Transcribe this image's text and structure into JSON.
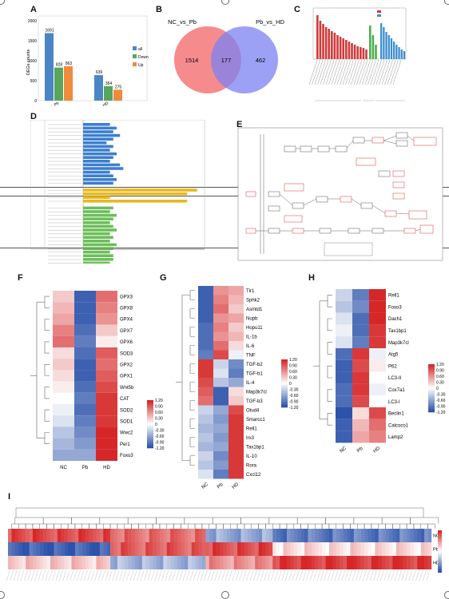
{
  "panels": {
    "A": "A",
    "B": "B",
    "C": "C",
    "D": "D",
    "E": "E",
    "F": "F",
    "G": "G",
    "H": "H",
    "I": "I"
  },
  "chart_a": {
    "type": "bar",
    "ylabel": "DEGs counts",
    "yticks": [
      "0",
      "500",
      "1000",
      "1500",
      "2000"
    ],
    "ylim": [
      0,
      2000
    ],
    "categories": [
      "NC_vs_Pb",
      "Pb_vs_HD"
    ],
    "series": [
      {
        "name": "all",
        "color": "#4a86c5",
        "values": [
          1691,
          639
        ]
      },
      {
        "name": "Down",
        "color": "#58a55c",
        "values": [
          828,
          364
        ]
      },
      {
        "name": "Up",
        "color": "#f08a3c",
        "values": [
          863,
          275
        ]
      }
    ]
  },
  "venn_b": {
    "left_label": "NC_vs_Pb",
    "right_label": "Pb_vs_HD",
    "left_only": "1514",
    "overlap": "177",
    "right_only": "462",
    "left_color": "#f4777a",
    "right_color": "#7b82f2"
  },
  "heat_f": {
    "genes": [
      "GPX3",
      "GPX8",
      "GPX4",
      "GPX7",
      "GPX6",
      "SOD3",
      "GPX2",
      "GPX1",
      "Wnt5b",
      "CAT",
      "SOD2",
      "SOD1",
      "Wwc2",
      "Per1",
      "Foxo3"
    ],
    "cols": [
      "NC",
      "Pb",
      "HD"
    ],
    "values": [
      [
        0.3,
        -1.1,
        0.8
      ],
      [
        0.4,
        -1.1,
        0.7
      ],
      [
        0.5,
        -1.1,
        0.6
      ],
      [
        0.7,
        -1.0,
        0.3
      ],
      [
        0.8,
        -0.9,
        0.1
      ],
      [
        0.2,
        -1.0,
        0.9
      ],
      [
        0.3,
        -1.1,
        0.8
      ],
      [
        0.2,
        -1.1,
        0.9
      ],
      [
        0.1,
        -1.0,
        1.0
      ],
      [
        0.0,
        -0.9,
        1.1
      ],
      [
        -0.1,
        -1.0,
        1.1
      ],
      [
        -0.2,
        -0.9,
        1.1
      ],
      [
        -0.4,
        -0.8,
        1.2
      ],
      [
        -0.5,
        -0.7,
        1.2
      ],
      [
        -0.6,
        -0.6,
        1.2
      ]
    ],
    "legend": [
      "1.20",
      "0.90",
      "0.60",
      "0.30",
      "0",
      "-0.30",
      "-0.60",
      "-0.90",
      "-1.20"
    ]
  },
  "heat_g": {
    "genes": [
      "Tlr1",
      "Sphk2",
      "Asmtd1",
      "Nupb",
      "Hopu11",
      "IL-1b",
      "IL-6",
      "TNF",
      "TGF-b2",
      "TGF-b1",
      "IL-4",
      "Map3k7cl",
      "TGF-b3",
      "Otud4",
      "Smarcc1",
      "Rell1",
      "Irx3",
      "Tax1bp1",
      "IL-10",
      "Rora",
      "Cxcl12"
    ],
    "cols": [
      "NC",
      "Pb",
      "HD"
    ],
    "values": [
      [
        -1.1,
        0.6,
        0.5
      ],
      [
        -1.1,
        0.7,
        0.4
      ],
      [
        -1.1,
        0.8,
        0.3
      ],
      [
        -1.1,
        0.6,
        0.5
      ],
      [
        -1.0,
        0.7,
        0.3
      ],
      [
        -1.0,
        0.6,
        0.4
      ],
      [
        -1.0,
        0.8,
        0.2
      ],
      [
        -0.9,
        1.0,
        -0.1
      ],
      [
        1.1,
        -0.3,
        -0.8
      ],
      [
        1.1,
        -0.2,
        -0.9
      ],
      [
        1.0,
        -0.4,
        -0.6
      ],
      [
        0.9,
        -1.1,
        0.2
      ],
      [
        0.8,
        -1.1,
        0.3
      ],
      [
        -0.3,
        -0.6,
        1.0
      ],
      [
        -0.4,
        -0.7,
        1.1
      ],
      [
        -0.5,
        -0.6,
        1.1
      ],
      [
        -0.4,
        -0.7,
        1.1
      ],
      [
        -0.5,
        -0.6,
        1.1
      ],
      [
        -0.3,
        -0.8,
        1.1
      ],
      [
        -0.4,
        -0.7,
        1.1
      ],
      [
        -0.2,
        -0.9,
        1.1
      ]
    ],
    "legend": [
      "1.20",
      "0.90",
      "0.60",
      "0.30",
      "0",
      "-0.30",
      "-0.60",
      "-0.90",
      "-1.20"
    ]
  },
  "heat_h": {
    "genes": [
      "Rell1",
      "Foxo3",
      "Dach1",
      "Tax1bp1",
      "Map3k7cl",
      "Atg5",
      "P62",
      "LC3-II",
      "Cox7a1",
      "LC3-I",
      "Beclin1",
      "Calcoco1",
      "Lamp2"
    ],
    "cols": [
      "NC",
      "Pb",
      "HD"
    ],
    "values": [
      [
        -0.3,
        -0.9,
        1.2
      ],
      [
        -0.4,
        -0.8,
        1.2
      ],
      [
        -0.2,
        -1.0,
        1.2
      ],
      [
        -0.1,
        -1.0,
        1.1
      ],
      [
        -0.2,
        -0.9,
        1.1
      ],
      [
        -1.0,
        1.1,
        -0.1
      ],
      [
        -1.1,
        1.0,
        0.1
      ],
      [
        -1.1,
        1.1,
        0.0
      ],
      [
        -1.0,
        1.1,
        -0.1
      ],
      [
        -1.0,
        1.0,
        0.0
      ],
      [
        -1.2,
        0.2,
        1.0
      ],
      [
        -1.1,
        0.4,
        0.8
      ],
      [
        -1.1,
        0.5,
        0.7
      ]
    ],
    "legend": [
      "1.20",
      "0.90",
      "0.60",
      "0.30",
      "0",
      "-0.30",
      "-0.60",
      "-0.90",
      "-1.20"
    ]
  },
  "heat_i": {
    "rows": [
      "NC",
      "Pb",
      "HD"
    ],
    "legend": [
      "1.20",
      "0.90",
      "0.60",
      "0.30",
      "0",
      "-0.30",
      "-0.60",
      "-0.90",
      "-1.20"
    ]
  }
}
